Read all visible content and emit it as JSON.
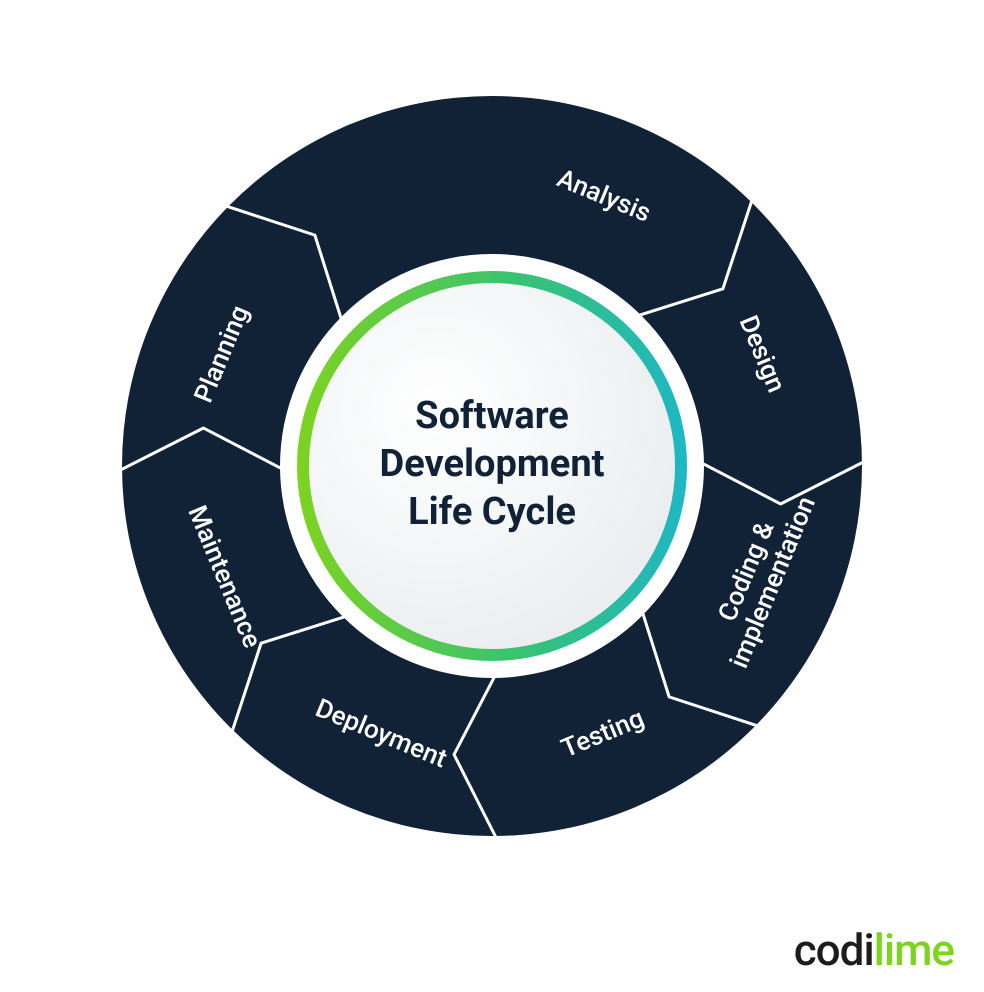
{
  "diagram": {
    "type": "cycle",
    "title_lines": [
      "Software",
      "Development",
      "Life Cycle"
    ],
    "segments": [
      {
        "label": "Analysis",
        "center_angle": -67.5
      },
      {
        "label": "Design",
        "center_angle": -22.5
      },
      {
        "label": "Coding & implementation",
        "center_angle": 22.5,
        "multiline": [
          "Coding &",
          "implementation"
        ]
      },
      {
        "label": "Testing",
        "center_angle": 67.5
      },
      {
        "label": "Deployment",
        "center_angle": 112.5
      },
      {
        "label": "Maintenance",
        "center_angle": 157.5
      },
      {
        "label": "Planning",
        "center_angle": 202.5
      }
    ],
    "geometry": {
      "outer_radius": 370,
      "inner_radius": 212,
      "label_radius": 291,
      "arrow_half_angle": 22,
      "arrow_tip_extra_deg": 8,
      "divider_stroke_width": 3,
      "svg_size": 820,
      "inner_circle_radius": 195,
      "gradient_ring_width": 12
    },
    "colors": {
      "ring_fill": "#122236",
      "divider": "#ffffff",
      "label_text": "#ffffff",
      "title_text": "#122236",
      "inner_bg_light": "#ffffff",
      "inner_bg_shade": "#e9edef",
      "gradient_stops": [
        "#7ed321",
        "#39c36f",
        "#1fb7c4"
      ]
    },
    "typography": {
      "label_fontsize": 26,
      "label_fontweight": 500,
      "title_fontsize": 38,
      "title_fontweight": 700,
      "title_line_height": 48
    }
  },
  "logo": {
    "prefix": "codi",
    "suffix": "lime",
    "prefix_color": "#1c1c1c",
    "suffix_color": "#7ed321"
  }
}
